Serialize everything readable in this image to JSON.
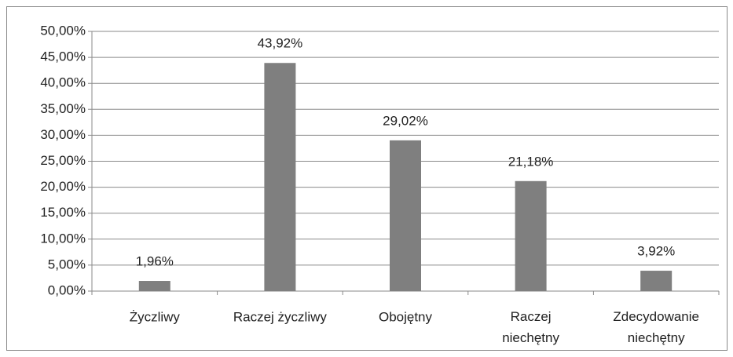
{
  "chart_data": {
    "type": "bar",
    "categories": [
      "Życzliwy",
      "Raczej życzliwy",
      "Obojętny",
      "Raczej\nniechętny",
      "Zdecydowanie\nniechętny"
    ],
    "values": [
      1.96,
      43.92,
      29.02,
      21.18,
      3.92
    ],
    "value_labels": [
      "1,96%",
      "43,92%",
      "29,02%",
      "21,18%",
      "3,92%"
    ],
    "color": "#7f7f7f",
    "ylim": [
      0,
      50
    ],
    "yticks": [
      {
        "value": 0,
        "label": "0,00%"
      },
      {
        "value": 5,
        "label": "5,00%"
      },
      {
        "value": 10,
        "label": "10,00%"
      },
      {
        "value": 15,
        "label": "15,00%"
      },
      {
        "value": 20,
        "label": "20,00%"
      },
      {
        "value": 25,
        "label": "25,00%"
      },
      {
        "value": 30,
        "label": "30,00%"
      },
      {
        "value": 35,
        "label": "35,00%"
      },
      {
        "value": 40,
        "label": "40,00%"
      },
      {
        "value": 45,
        "label": "45,00%"
      },
      {
        "value": 50,
        "label": "50,00%"
      }
    ],
    "grid": true
  }
}
